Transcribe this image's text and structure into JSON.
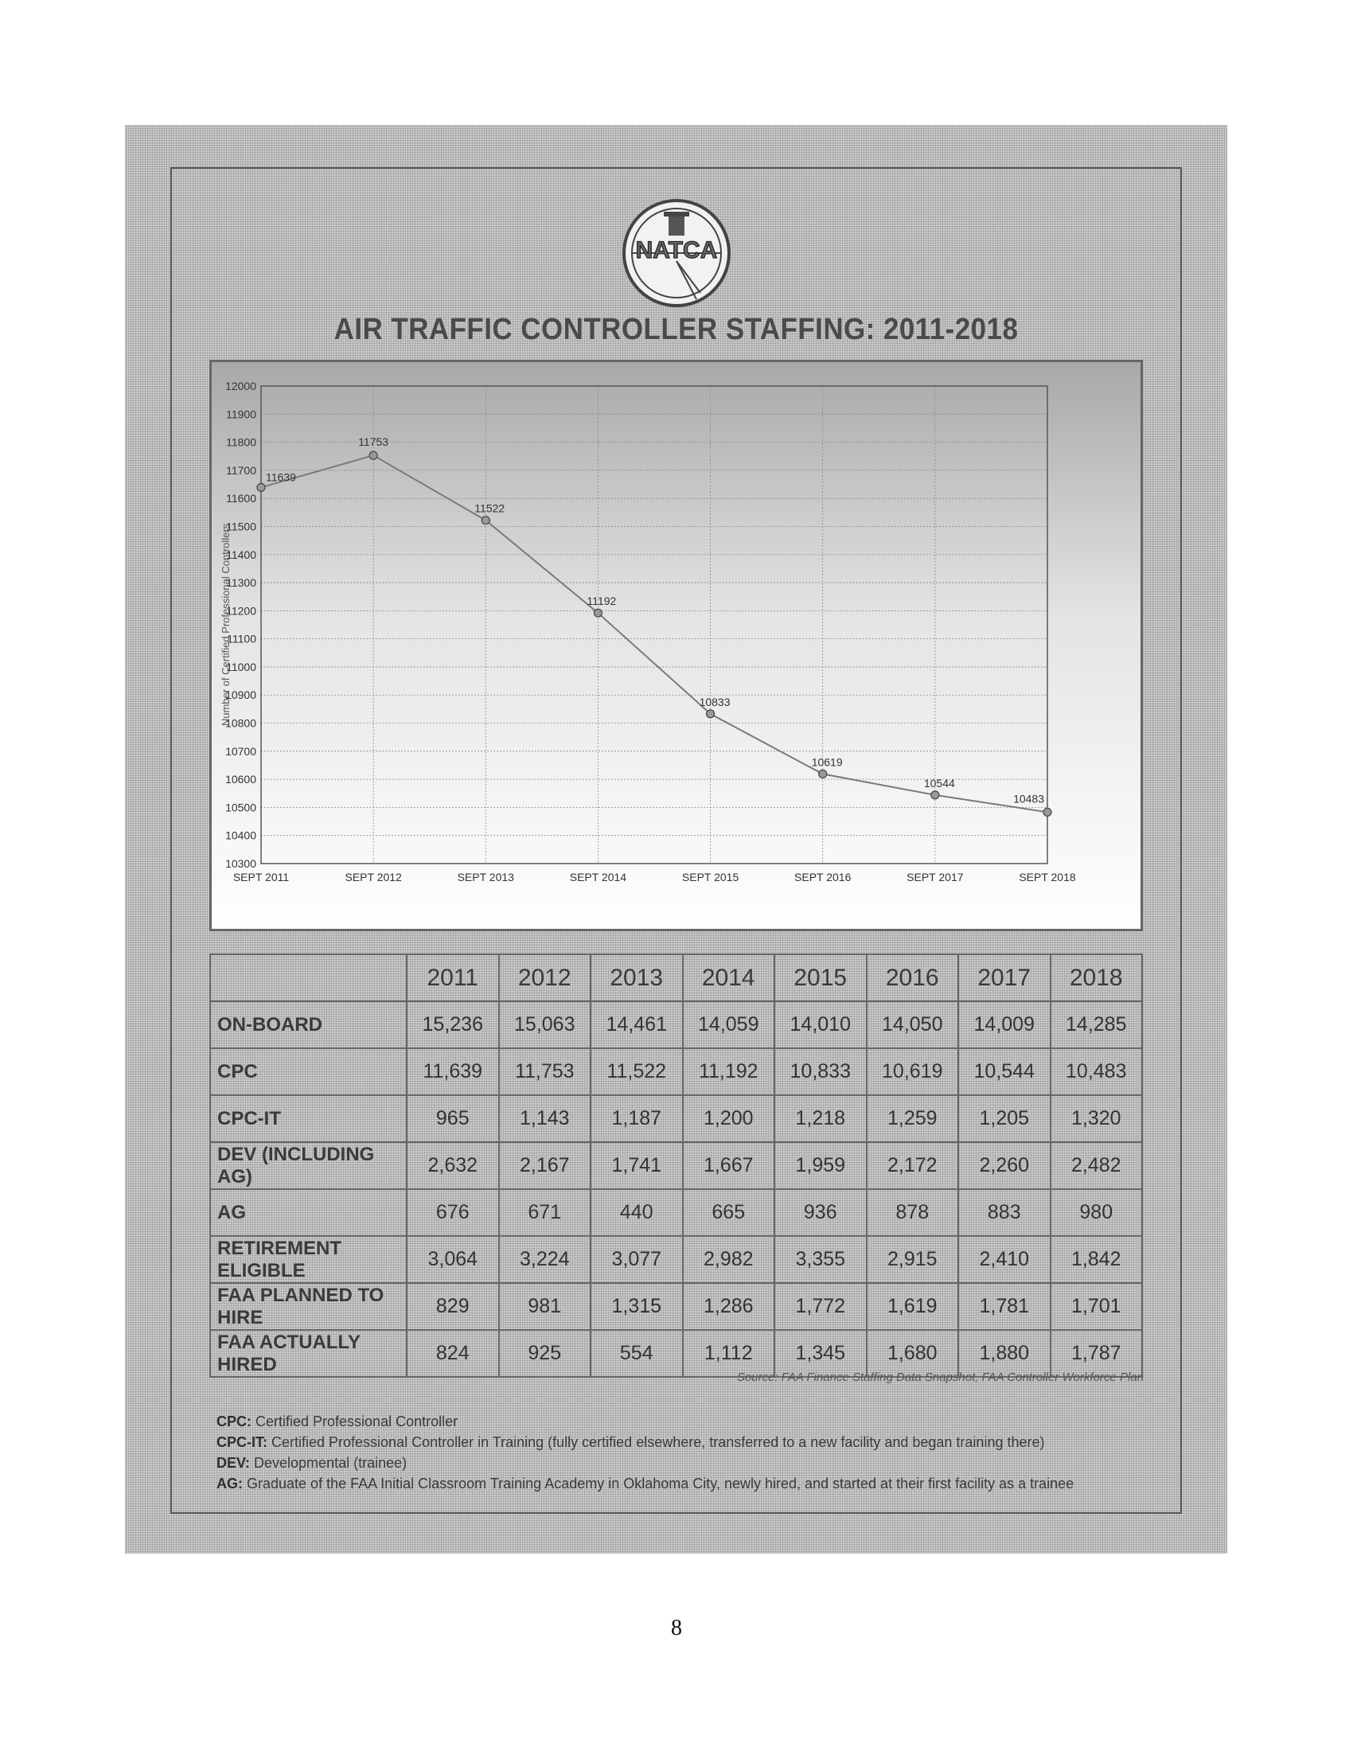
{
  "page": {
    "title": "AIR TRAFFIC CONTROLLER STAFFING: 2011-2018",
    "logo_text": "NATCA",
    "page_number": "8",
    "source": "Source: FAA Finance Staffing Data Snapshot, FAA Controller Workforce Plan"
  },
  "chart_data": {
    "type": "line",
    "title": "",
    "xlabel": "",
    "ylabel": "Number of Certified Professional Controllers",
    "categories": [
      "SEPT 2011",
      "SEPT 2012",
      "SEPT 2013",
      "SEPT 2014",
      "SEPT 2015",
      "SEPT 2016",
      "SEPT 2017",
      "SEPT 2018"
    ],
    "values": [
      11639,
      11753,
      11522,
      11192,
      10833,
      10619,
      10544,
      10483
    ],
    "ylim": [
      10300,
      12000
    ],
    "yticks": [
      10300,
      10400,
      10500,
      10600,
      10700,
      10800,
      10900,
      11000,
      11100,
      11200,
      11300,
      11400,
      11500,
      11600,
      11700,
      11800,
      11900,
      12000
    ],
    "grid": true,
    "line_color": "#7a7a7a"
  },
  "table": {
    "header": [
      "",
      "2011",
      "2012",
      "2013",
      "2014",
      "2015",
      "2016",
      "2017",
      "2018"
    ],
    "rows": [
      {
        "label": "ON-BOARD",
        "values": [
          "15,236",
          "15,063",
          "14,461",
          "14,059",
          "14,010",
          "14,050",
          "14,009",
          "14,285"
        ]
      },
      {
        "label": "CPC",
        "values": [
          "11,639",
          "11,753",
          "11,522",
          "11,192",
          "10,833",
          "10,619",
          "10,544",
          "10,483"
        ]
      },
      {
        "label": "CPC-IT",
        "values": [
          "965",
          "1,143",
          "1,187",
          "1,200",
          "1,218",
          "1,259",
          "1,205",
          "1,320"
        ]
      },
      {
        "label": "DEV (INCLUDING AG)",
        "values": [
          "2,632",
          "2,167",
          "1,741",
          "1,667",
          "1,959",
          "2,172",
          "2,260",
          "2,482"
        ]
      },
      {
        "label": "AG",
        "values": [
          "676",
          "671",
          "440",
          "665",
          "936",
          "878",
          "883",
          "980"
        ]
      },
      {
        "label": "RETIREMENT ELIGIBLE",
        "values": [
          "3,064",
          "3,224",
          "3,077",
          "2,982",
          "3,355",
          "2,915",
          "2,410",
          "1,842"
        ]
      },
      {
        "label": "FAA PLANNED TO HIRE",
        "values": [
          "829",
          "981",
          "1,315",
          "1,286",
          "1,772",
          "1,619",
          "1,781",
          "1,701"
        ]
      },
      {
        "label": "FAA ACTUALLY HIRED",
        "values": [
          "824",
          "925",
          "554",
          "1,112",
          "1,345",
          "1,680",
          "1,880",
          "1,787"
        ]
      }
    ]
  },
  "definitions": [
    {
      "term": "CPC:",
      "text": " Certified Professional Controller"
    },
    {
      "term": "CPC-IT:",
      "text": " Certified Professional Controller in Training (fully certified elsewhere, transferred to a new facility and began training there)"
    },
    {
      "term": "DEV:",
      "text": " Developmental (trainee)"
    },
    {
      "term": "AG:",
      "text": " Graduate of the FAA Initial Classroom Training Academy in Oklahoma City, newly hired, and started at their first facility as a trainee"
    }
  ]
}
